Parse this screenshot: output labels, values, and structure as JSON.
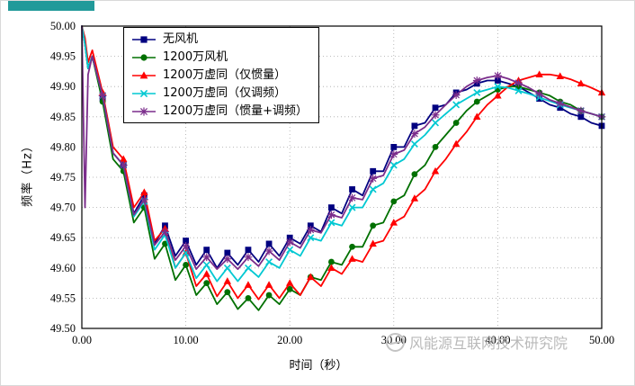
{
  "decor": {
    "teal_block_color": "#219a9a"
  },
  "watermark": {
    "text": "风能源互联网技术研究院",
    "logo": "globe-icon"
  },
  "chart_data": {
    "type": "line",
    "title": "",
    "xlabel": "时间（秒）",
    "ylabel": "频率（Hz）",
    "xlim": [
      0,
      50
    ],
    "ylim": [
      49.5,
      50.0
    ],
    "grid": true,
    "legend_position": "top-left-inside",
    "x_ticks": [
      "0.00",
      "10.00",
      "20.00",
      "30.00",
      "40.00",
      "50.00"
    ],
    "y_ticks": [
      "50.00",
      "49.95",
      "49.90",
      "49.85",
      "49.80",
      "49.75",
      "49.70",
      "49.65",
      "49.60",
      "49.55",
      "49.50"
    ],
    "x": [
      0,
      0.3,
      0.6,
      1,
      2,
      3,
      4,
      5,
      6,
      7,
      8,
      9,
      10,
      11,
      12,
      13,
      14,
      15,
      16,
      17,
      18,
      19,
      20,
      21,
      22,
      23,
      24,
      25,
      26,
      27,
      28,
      29,
      30,
      31,
      32,
      33,
      34,
      35,
      36,
      37,
      38,
      39,
      40,
      41,
      42,
      43,
      44,
      45,
      46,
      47,
      48,
      49,
      50
    ],
    "series": [
      {
        "name": "无风机",
        "color": "#000080",
        "marker": "square",
        "values": [
          50.0,
          49.97,
          49.93,
          49.95,
          49.88,
          49.79,
          49.77,
          49.69,
          49.72,
          49.64,
          49.67,
          49.62,
          49.645,
          49.605,
          49.63,
          49.6,
          49.625,
          49.605,
          49.63,
          49.61,
          49.64,
          49.62,
          49.65,
          49.64,
          49.67,
          49.66,
          49.7,
          49.69,
          49.73,
          49.72,
          49.76,
          49.76,
          49.8,
          49.8,
          49.835,
          49.84,
          49.865,
          49.87,
          49.89,
          49.895,
          49.905,
          49.91,
          49.91,
          49.905,
          49.9,
          49.89,
          49.88,
          49.87,
          49.865,
          49.855,
          49.85,
          49.84,
          49.835
        ]
      },
      {
        "name": "1200万风机",
        "color": "#007000",
        "marker": "circle",
        "values": [
          50.0,
          49.97,
          49.93,
          49.95,
          49.875,
          49.78,
          49.76,
          49.675,
          49.7,
          49.615,
          49.64,
          49.58,
          49.605,
          49.555,
          49.575,
          49.54,
          49.56,
          49.532,
          49.55,
          49.53,
          49.555,
          49.54,
          49.565,
          49.555,
          49.585,
          49.58,
          49.61,
          49.605,
          49.635,
          49.635,
          49.67,
          49.675,
          49.71,
          49.72,
          49.755,
          49.77,
          49.8,
          49.82,
          49.84,
          49.86,
          49.875,
          49.885,
          49.895,
          49.9,
          49.9,
          49.895,
          49.89,
          49.885,
          49.875,
          49.87,
          49.86,
          49.855,
          49.85
        ]
      },
      {
        "name": "1200万虚同（仅惯量）",
        "color": "#ff0000",
        "marker": "triangle",
        "values": [
          50.0,
          49.98,
          49.94,
          49.96,
          49.89,
          49.8,
          49.78,
          49.7,
          49.725,
          49.645,
          49.665,
          49.6,
          49.625,
          49.57,
          49.59,
          49.553,
          49.578,
          49.55,
          49.572,
          49.548,
          49.572,
          49.55,
          49.575,
          49.555,
          49.585,
          49.57,
          49.6,
          49.59,
          49.615,
          49.61,
          49.64,
          49.645,
          49.675,
          49.685,
          49.715,
          49.73,
          49.76,
          49.78,
          49.805,
          49.825,
          49.85,
          49.87,
          49.885,
          49.9,
          49.91,
          49.915,
          49.92,
          49.92,
          49.917,
          49.912,
          49.905,
          49.898,
          49.89
        ]
      },
      {
        "name": "1200万虚同（仅调频）",
        "color": "#00c8d2",
        "marker": "x",
        "values": [
          50.0,
          49.97,
          49.93,
          49.95,
          49.885,
          49.79,
          49.77,
          49.685,
          49.71,
          49.63,
          49.655,
          49.6,
          49.625,
          49.583,
          49.605,
          49.578,
          49.6,
          49.578,
          49.6,
          49.585,
          49.61,
          49.6,
          49.63,
          49.62,
          49.65,
          49.645,
          49.675,
          49.67,
          49.7,
          49.7,
          49.73,
          49.74,
          49.77,
          49.78,
          49.805,
          49.82,
          49.84,
          49.855,
          49.87,
          49.88,
          49.89,
          49.895,
          49.9,
          49.898,
          49.893,
          49.888,
          49.882,
          49.876,
          49.87,
          49.865,
          49.86,
          49.855,
          49.85
        ]
      },
      {
        "name": "1200万虚同（惯量+调频）",
        "color": "#7b2d8b",
        "marker": "asterisk",
        "values": [
          50.0,
          49.7,
          49.92,
          49.95,
          49.885,
          49.79,
          49.77,
          49.688,
          49.713,
          49.638,
          49.66,
          49.613,
          49.636,
          49.598,
          49.618,
          49.598,
          49.615,
          49.598,
          49.618,
          49.603,
          49.628,
          49.613,
          49.643,
          49.633,
          49.663,
          49.658,
          49.688,
          49.683,
          49.716,
          49.713,
          49.748,
          49.753,
          49.788,
          49.795,
          49.822,
          49.833,
          49.853,
          49.87,
          49.886,
          49.9,
          49.91,
          49.915,
          49.918,
          49.913,
          49.906,
          49.898,
          49.888,
          49.878,
          49.872,
          49.866,
          49.86,
          49.855,
          49.85
        ]
      }
    ]
  }
}
